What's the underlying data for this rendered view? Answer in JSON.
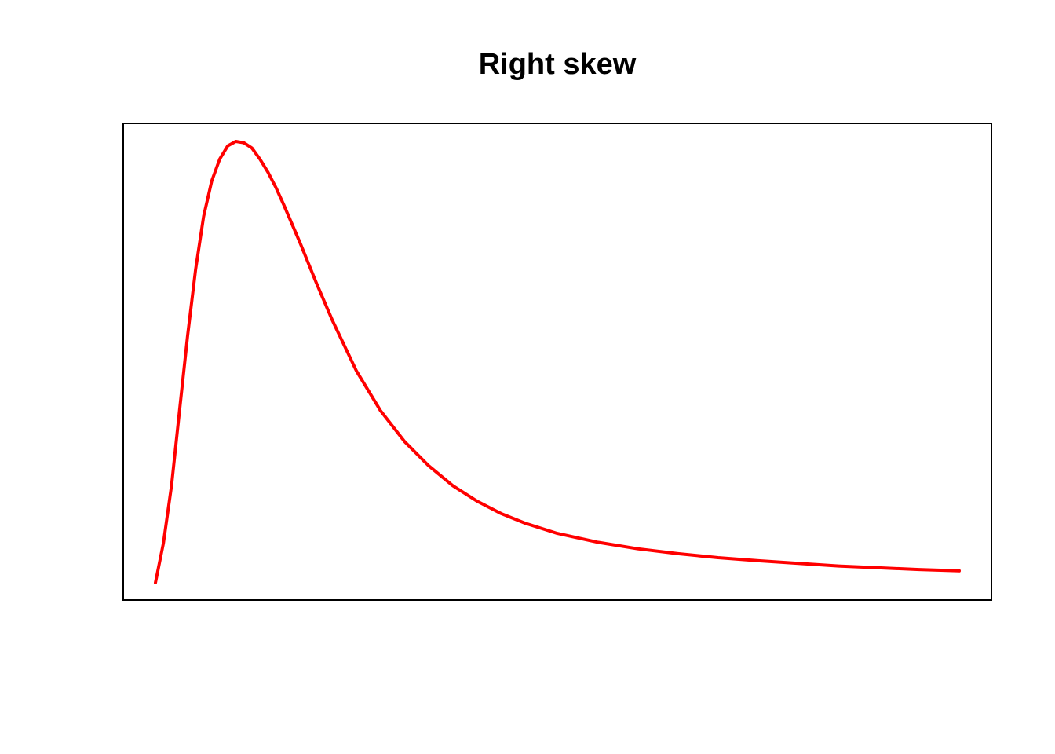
{
  "chart_data": {
    "type": "line",
    "title": "Right skew",
    "xlabel": "",
    "ylabel": "",
    "axes_shown": false,
    "grid": false,
    "box": true,
    "series": [
      {
        "color": "#ff0000",
        "x": [
          0.0,
          0.01,
          0.02,
          0.03,
          0.04,
          0.05,
          0.06,
          0.07,
          0.08,
          0.09,
          0.1,
          0.11,
          0.12,
          0.13,
          0.14,
          0.15,
          0.16,
          0.18,
          0.2,
          0.22,
          0.25,
          0.28,
          0.31,
          0.34,
          0.37,
          0.4,
          0.43,
          0.46,
          0.5,
          0.55,
          0.6,
          0.65,
          0.7,
          0.75,
          0.8,
          0.85,
          0.9,
          0.95,
          1.0
        ],
        "y": [
          0.0,
          0.09,
          0.22,
          0.39,
          0.56,
          0.71,
          0.83,
          0.91,
          0.96,
          0.99,
          1.0,
          0.997,
          0.985,
          0.96,
          0.93,
          0.895,
          0.855,
          0.77,
          0.68,
          0.595,
          0.48,
          0.39,
          0.32,
          0.265,
          0.22,
          0.185,
          0.157,
          0.135,
          0.112,
          0.092,
          0.077,
          0.066,
          0.057,
          0.05,
          0.044,
          0.038,
          0.034,
          0.03,
          0.027
        ]
      }
    ]
  }
}
